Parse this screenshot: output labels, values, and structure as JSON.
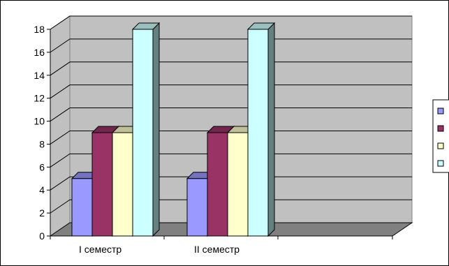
{
  "chart_data": {
    "type": "bar",
    "style": "3d-clustered-column",
    "categories": [
      "I семестр",
      "II семестр"
    ],
    "series": [
      {
        "values": [
          5,
          5
        ],
        "color": "#9999ff"
      },
      {
        "values": [
          9,
          9
        ],
        "color": "#993366"
      },
      {
        "values": [
          9,
          9
        ],
        "color": "#ffffcc"
      },
      {
        "values": [
          18,
          18
        ],
        "color": "#ccffff"
      }
    ],
    "ylim": [
      0,
      18
    ],
    "yticks": [
      "0",
      "2",
      "4",
      "6",
      "8",
      "10",
      "12",
      "14",
      "16",
      "18"
    ],
    "grid": true,
    "wall_color": "#c0c0c0",
    "floor_color": "#808080",
    "legend": {
      "placement": "right",
      "entries": [
        "",
        "",
        "",
        ""
      ]
    }
  }
}
